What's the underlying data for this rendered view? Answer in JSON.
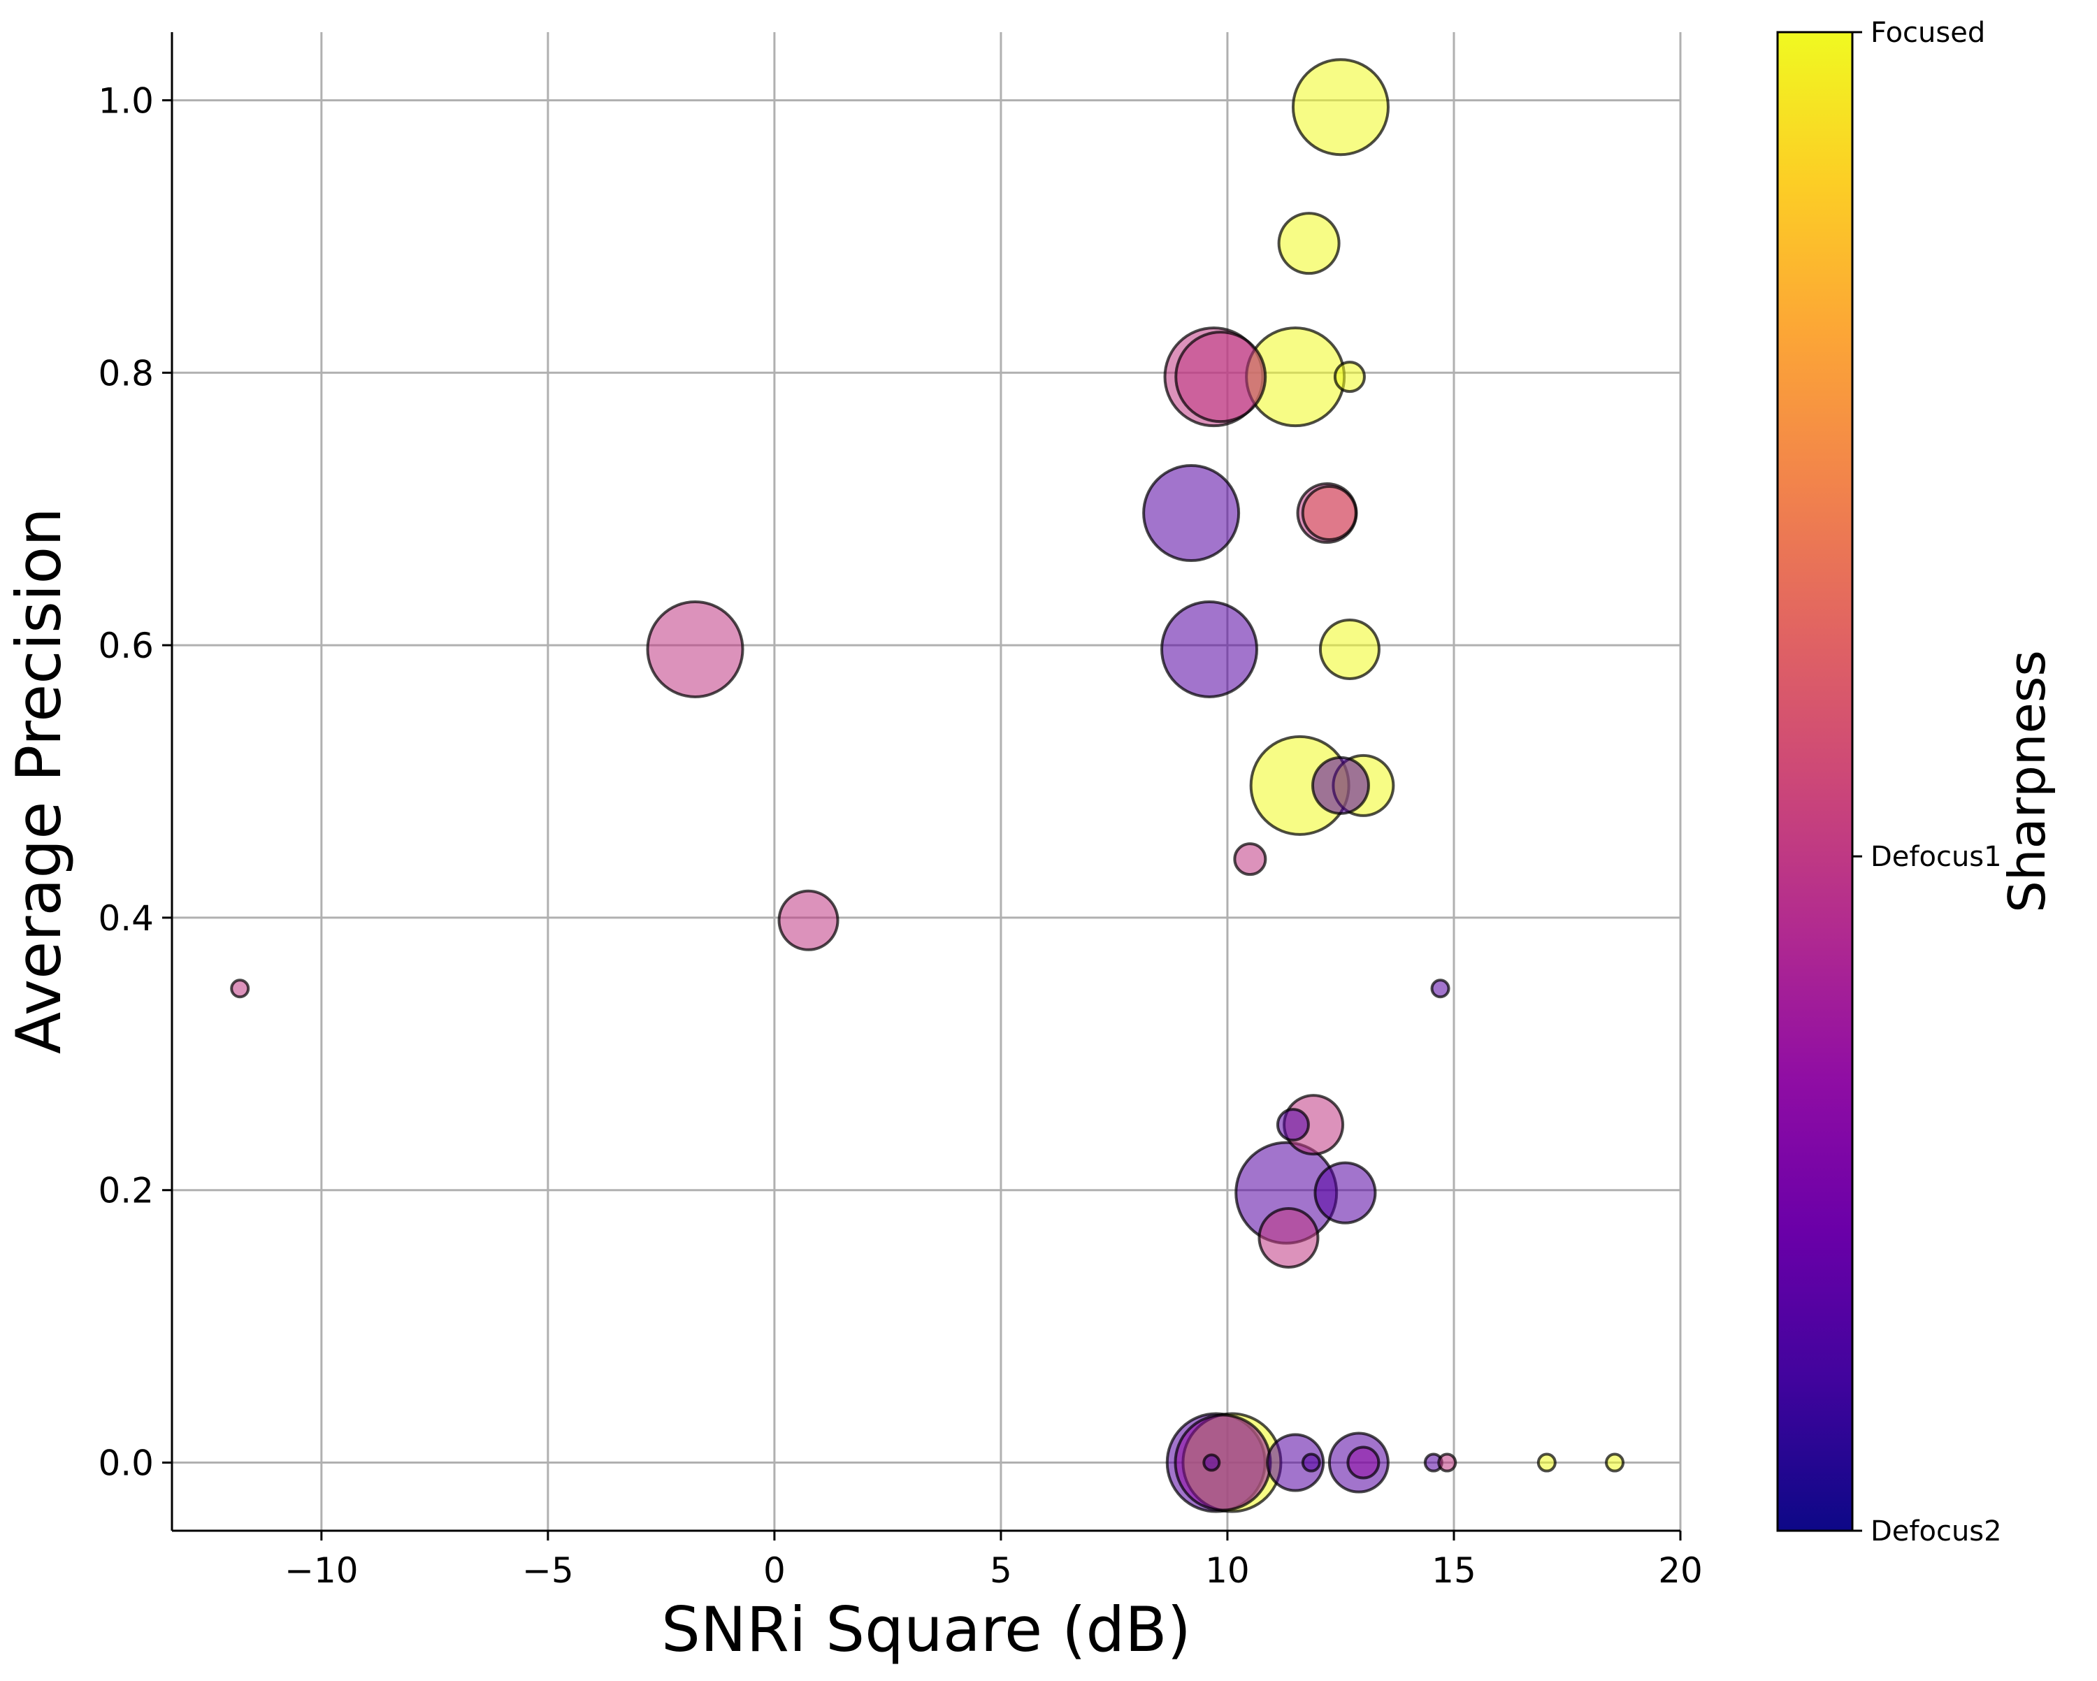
{
  "chart_data": {
    "type": "scatter",
    "xlabel": "SNRi Square (dB)",
    "ylabel": "Average Precision",
    "xlim": [
      -13.3,
      20
    ],
    "ylim": [
      -0.05,
      1.05
    ],
    "x_ticks": [
      -10,
      -5,
      0,
      5,
      10,
      15,
      20
    ],
    "x_tick_labels": [
      "−10",
      "−5",
      "0",
      "5",
      "10",
      "15",
      "20"
    ],
    "y_ticks": [
      0.0,
      0.2,
      0.4,
      0.6,
      0.8,
      1.0
    ],
    "y_tick_labels": [
      "0.0",
      "0.2",
      "0.4",
      "0.6",
      "0.8",
      "1.0"
    ],
    "grid": true,
    "colorbar": {
      "title": "Sharpness",
      "colormap": "plasma",
      "ticks": [
        {
          "label": "Focused",
          "value": 1.0
        },
        {
          "label": "Defocus1",
          "value": 0.45
        },
        {
          "label": "Defocus2",
          "value": 0.0
        }
      ]
    },
    "point_style": {
      "alpha": 0.55,
      "edge_color": "#000000"
    },
    "point_size_note": "marker size encodes a per-point count; values here are relative sizes",
    "points": [
      {
        "x": 12.5,
        "y": 0.995,
        "size": 68,
        "sharpness": 1.0
      },
      {
        "x": 11.8,
        "y": 0.895,
        "size": 43,
        "sharpness": 1.0
      },
      {
        "x": 9.7,
        "y": 0.797,
        "size": 70,
        "sharpness": 0.45
      },
      {
        "x": 9.85,
        "y": 0.797,
        "size": 64,
        "sharpness": 0.45
      },
      {
        "x": 11.5,
        "y": 0.797,
        "size": 70,
        "sharpness": 1.0
      },
      {
        "x": 12.7,
        "y": 0.797,
        "size": 21,
        "sharpness": 1.0
      },
      {
        "x": 9.2,
        "y": 0.697,
        "size": 68,
        "sharpness": 0.15
      },
      {
        "x": 12.2,
        "y": 0.697,
        "size": 42,
        "sharpness": 0.45
      },
      {
        "x": 12.25,
        "y": 0.697,
        "size": 38,
        "sharpness": 0.6
      },
      {
        "x": -1.75,
        "y": 0.597,
        "size": 68,
        "sharpness": 0.45
      },
      {
        "x": 9.6,
        "y": 0.597,
        "size": 68,
        "sharpness": 0.15
      },
      {
        "x": 12.7,
        "y": 0.597,
        "size": 42,
        "sharpness": 1.0
      },
      {
        "x": 12.5,
        "y": 0.497,
        "size": 40,
        "sharpness": 0.15
      },
      {
        "x": 11.6,
        "y": 0.497,
        "size": 70,
        "sharpness": 1.0
      },
      {
        "x": 13.0,
        "y": 0.497,
        "size": 43,
        "sharpness": 1.0
      },
      {
        "x": 10.5,
        "y": 0.443,
        "size": 22,
        "sharpness": 0.45
      },
      {
        "x": 0.75,
        "y": 0.398,
        "size": 42,
        "sharpness": 0.45
      },
      {
        "x": -11.8,
        "y": 0.348,
        "size": 12,
        "sharpness": 0.45
      },
      {
        "x": 14.7,
        "y": 0.348,
        "size": 12,
        "sharpness": 0.15
      },
      {
        "x": 11.45,
        "y": 0.248,
        "size": 22,
        "sharpness": 0.15
      },
      {
        "x": 11.9,
        "y": 0.248,
        "size": 42,
        "sharpness": 0.45
      },
      {
        "x": 11.3,
        "y": 0.198,
        "size": 72,
        "sharpness": 0.15
      },
      {
        "x": 12.6,
        "y": 0.198,
        "size": 43,
        "sharpness": 0.15
      },
      {
        "x": 11.35,
        "y": 0.165,
        "size": 42,
        "sharpness": 0.45
      },
      {
        "x": 9.75,
        "y": 0.0,
        "size": 70,
        "sharpness": 0.15
      },
      {
        "x": 9.9,
        "y": 0.0,
        "size": 68,
        "sharpness": 0.3
      },
      {
        "x": 10.1,
        "y": 0.0,
        "size": 70,
        "sharpness": 1.0
      },
      {
        "x": 9.65,
        "y": 0.0,
        "size": 11,
        "sharpness": 0.15
      },
      {
        "x": 11.5,
        "y": 0.0,
        "size": 40,
        "sharpness": 0.15
      },
      {
        "x": 11.85,
        "y": 0.0,
        "size": 12,
        "sharpness": 0.15
      },
      {
        "x": 12.9,
        "y": 0.0,
        "size": 42,
        "sharpness": 0.15
      },
      {
        "x": 13.0,
        "y": 0.0,
        "size": 22,
        "sharpness": 0.3
      },
      {
        "x": 14.55,
        "y": 0.0,
        "size": 12,
        "sharpness": 0.15
      },
      {
        "x": 14.85,
        "y": 0.0,
        "size": 12,
        "sharpness": 0.45
      },
      {
        "x": 17.05,
        "y": 0.0,
        "size": 12,
        "sharpness": 1.0
      },
      {
        "x": 18.55,
        "y": 0.0,
        "size": 12,
        "sharpness": 1.0
      }
    ]
  }
}
